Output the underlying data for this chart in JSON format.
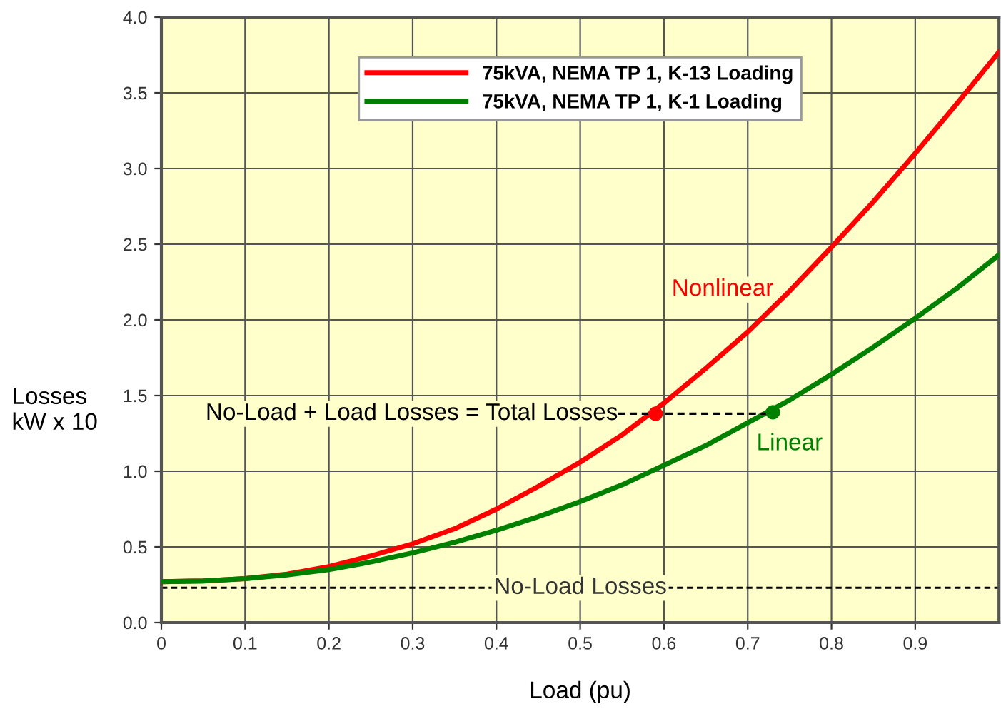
{
  "chart_data": {
    "type": "line",
    "xlabel": "Load (pu)",
    "ylabel": "Losses\nkW x 10",
    "x": [
      0,
      0.05,
      0.1,
      0.15,
      0.2,
      0.25,
      0.3,
      0.35,
      0.4,
      0.45,
      0.5,
      0.55,
      0.6,
      0.65,
      0.7,
      0.75,
      0.8,
      0.85,
      0.9,
      0.95,
      1.0
    ],
    "series": [
      {
        "name": "75kVA, NEMA TP 1, K-13 Loading",
        "color": "#ff0000",
        "values": [
          0.27,
          0.275,
          0.29,
          0.32,
          0.37,
          0.44,
          0.52,
          0.62,
          0.75,
          0.9,
          1.06,
          1.24,
          1.45,
          1.68,
          1.92,
          2.19,
          2.48,
          2.78,
          3.1,
          3.43,
          3.77
        ]
      },
      {
        "name": "75kVA, NEMA TP 1, K-1 Loading",
        "color": "#008000",
        "values": [
          0.27,
          0.275,
          0.29,
          0.315,
          0.35,
          0.4,
          0.46,
          0.53,
          0.61,
          0.7,
          0.8,
          0.91,
          1.04,
          1.17,
          1.32,
          1.47,
          1.64,
          1.82,
          2.01,
          2.21,
          2.43
        ]
      },
      {
        "type": "line",
        "color": "#000000",
        "line_style": "dashed",
        "x": [
          0.545,
          0.73
        ],
        "values": [
          1.38,
          1.38
        ]
      },
      {
        "type": "scatter",
        "color": "#ff0000",
        "marker": "circle",
        "x": [
          0.59
        ],
        "values": [
          1.38
        ]
      },
      {
        "type": "scatter",
        "color": "#008000",
        "marker": "circle",
        "x": [
          0.73
        ],
        "values": [
          1.39
        ]
      }
    ],
    "xlim": [
      0,
      1.0
    ],
    "xticks": [
      0,
      0.1,
      0.2,
      0.3,
      0.4,
      0.5,
      0.6,
      0.7,
      0.8,
      0.9
    ],
    "ylim": [
      0,
      4.0
    ],
    "yticks": [
      {
        "value": 0,
        "label": "0.0"
      },
      0.5,
      {
        "value": 1,
        "label": "1.0"
      },
      1.5,
      {
        "value": 2,
        "label": "2.0"
      },
      2.5,
      {
        "value": 3,
        "label": "3.0"
      },
      3.5,
      {
        "value": 4,
        "label": "4.0"
      }
    ],
    "ref_lines": [
      {
        "axis": "y",
        "value": 0.23,
        "label": "No-Load Losses",
        "color": "#000000",
        "line_style": "dashed"
      }
    ],
    "annotations": [
      "Nonlinear",
      "Linear",
      {
        "text": "No-Load + Load Losses = Total Losses",
        "x": 0.545,
        "y": 1.38
      }
    ],
    "grid": true,
    "legend": "top",
    "marker": "none",
    "line_style": "solid"
  }
}
